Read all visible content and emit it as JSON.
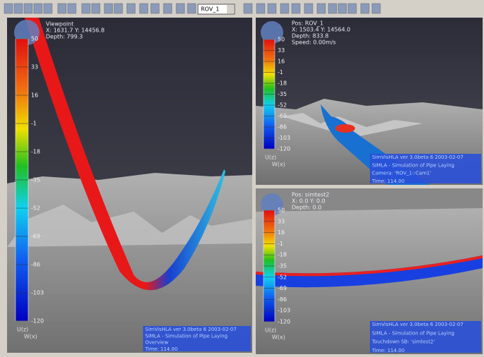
{
  "toolbar": {
    "dropdown": "ROV_1"
  },
  "views": [
    {
      "overlay": [
        "Viewpoint",
        "X: 1631.7  Y: 14456.8",
        "Depth: 799.3"
      ],
      "legend": {
        "ticks": [
          "50",
          "33",
          "16",
          "-1",
          "-18",
          "-35",
          "-52",
          "-69",
          "-86",
          "-103",
          "-120"
        ],
        "labels": [
          "U(z)",
          "W(x)"
        ]
      },
      "info": [
        "SimVisHLA ver 3.0beta 6    2003-02-07",
        "SIMLA - Simulation of Pipe Laying",
        "Overview",
        "Time: 114.00"
      ]
    },
    {
      "overlay": [
        "Pos: ROV_1",
        "X: 1503.4  Y: 14564.0",
        "Depth: 833.8",
        "Speed: 0.00m/s"
      ],
      "legend": {
        "ticks": [
          "50",
          "33",
          "16",
          "-1",
          "-18",
          "-35",
          "-52",
          "-69",
          "-86",
          "-103",
          "-120"
        ],
        "labels": [
          "U(z)",
          "W(x)"
        ]
      },
      "info": [
        "SimVisHLA ver 3.0beta 6    2003-02-07",
        "SIMLA - Simulation of Pipe Laying",
        "Camera: 'ROV_1::Cam1'",
        "Time: 114.00"
      ]
    },
    {
      "overlay": [
        "Pos: simtest2",
        "X: 0.0  Y: 0.0",
        "Depth: 0.0"
      ],
      "legend": {
        "ticks": [
          "50",
          "33",
          "16",
          "-1",
          "-18",
          "-35",
          "-52",
          "-69",
          "-86",
          "-103",
          "-120"
        ],
        "labels": [
          "U(z)",
          "W(x)"
        ]
      },
      "info": [
        "SimVisHLA ver 3.0beta 6    2003-02-07",
        "SIMLA - Simulation of Pipe Laying",
        "Touchdown SB: 'simtest2'",
        "Time: 114.00"
      ]
    }
  ]
}
